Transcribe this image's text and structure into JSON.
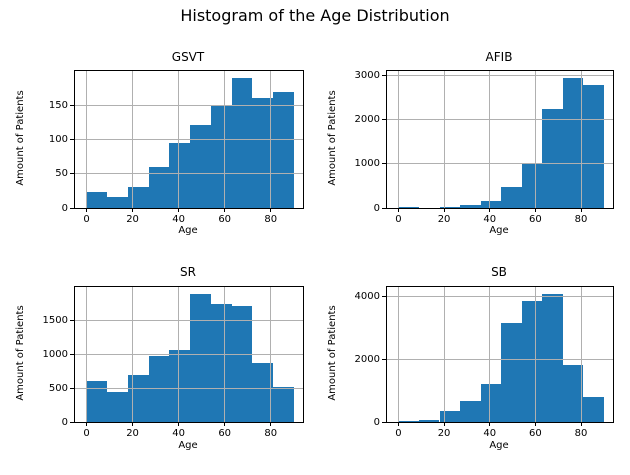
{
  "figure": {
    "suptitle": "Histogram of the Age Distribution"
  },
  "colors": {
    "bar": "#1f77b4",
    "grid": "#b0b0b0",
    "spine": "#000000",
    "background": "#ffffff",
    "text": "#000000"
  },
  "chart_data": [
    {
      "type": "bar",
      "subtype": "histogram",
      "title": "GSVT",
      "xlabel": "Age",
      "ylabel": "Amount of Patients",
      "bin_edges": [
        0,
        9,
        18,
        27,
        36,
        45,
        54,
        63,
        72,
        81,
        90
      ],
      "values": [
        23,
        16,
        31,
        60,
        95,
        121,
        150,
        190,
        161,
        170
      ],
      "xticks": [
        0,
        20,
        40,
        60,
        80
      ],
      "yticks": [
        0,
        50,
        100,
        150
      ],
      "xlim": [
        -5,
        94
      ],
      "ylim": [
        0,
        200
      ],
      "grid": true,
      "legend": false
    },
    {
      "type": "bar",
      "subtype": "histogram",
      "title": "AFIB",
      "xlabel": "Age",
      "ylabel": "Amount of Patients",
      "bin_edges": [
        0,
        9,
        18,
        27,
        36,
        45,
        54,
        63,
        72,
        81,
        90
      ],
      "values": [
        30,
        10,
        25,
        60,
        150,
        470,
        1030,
        2250,
        2950,
        2800
      ],
      "xticks": [
        0,
        20,
        40,
        60,
        80
      ],
      "yticks": [
        0,
        1000,
        2000,
        3000
      ],
      "xlim": [
        -5,
        94
      ],
      "ylim": [
        0,
        3110
      ],
      "grid": true,
      "legend": false
    },
    {
      "type": "bar",
      "subtype": "histogram",
      "title": "SR",
      "xlabel": "Age",
      "ylabel": "Amount of Patients",
      "bin_edges": [
        0,
        9,
        18,
        27,
        36,
        45,
        54,
        63,
        72,
        81,
        90
      ],
      "values": [
        600,
        435,
        700,
        980,
        1060,
        1890,
        1740,
        1710,
        865,
        515
      ],
      "xticks": [
        0,
        20,
        40,
        60,
        80
      ],
      "yticks": [
        0,
        500,
        1000,
        1500
      ],
      "xlim": [
        -5,
        94
      ],
      "ylim": [
        0,
        1990
      ],
      "grid": true,
      "legend": false
    },
    {
      "type": "bar",
      "subtype": "histogram",
      "title": "SB",
      "xlabel": "Age",
      "ylabel": "Amount of Patients",
      "bin_edges": [
        0,
        9,
        18,
        27,
        36,
        45,
        54,
        63,
        72,
        81,
        90
      ],
      "values": [
        25,
        70,
        360,
        680,
        1200,
        3150,
        3830,
        4080,
        1820,
        780
      ],
      "xticks": [
        0,
        20,
        40,
        60,
        80
      ],
      "yticks": [
        0,
        2000,
        4000
      ],
      "xlim": [
        -5,
        94
      ],
      "ylim": [
        0,
        4290
      ],
      "grid": true,
      "legend": false
    }
  ]
}
